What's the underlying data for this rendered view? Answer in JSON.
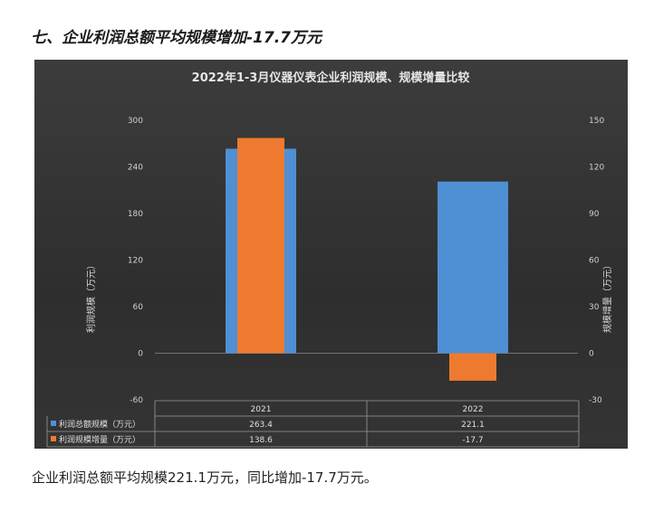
{
  "heading": "七、企业利润总额平均规模增加-17.7万元",
  "caption": "企业利润总额平均规模221.1万元，同比增加-17.7万元。",
  "chart_data": {
    "type": "bar",
    "title": "2022年1-3月仪器仪表企业利润规模、规模增量比较",
    "categories": [
      "2021",
      "2022"
    ],
    "series": [
      {
        "name": "利润总额规模（万元）",
        "axis": "left",
        "color": "#4f8fd3",
        "values": [
          263.4,
          221.1
        ],
        "labels": [
          "263.4",
          "221.1"
        ]
      },
      {
        "name": "利润规模增量（万元）",
        "axis": "right",
        "color": "#ee7a30",
        "values": [
          138.6,
          -17.7
        ],
        "labels": [
          "138.6",
          "-17.7"
        ]
      }
    ],
    "ylabel": "利润规模（万元）",
    "y2label": "规模增量（万元）",
    "ylim": [
      -60,
      300
    ],
    "y2lim": [
      -30,
      150
    ],
    "yticks": [
      300,
      240,
      180,
      120,
      60,
      0,
      -60
    ],
    "y2ticks": [
      150,
      120,
      90,
      60,
      30,
      0,
      -30
    ],
    "grid": false,
    "legend": "data-table-below"
  }
}
